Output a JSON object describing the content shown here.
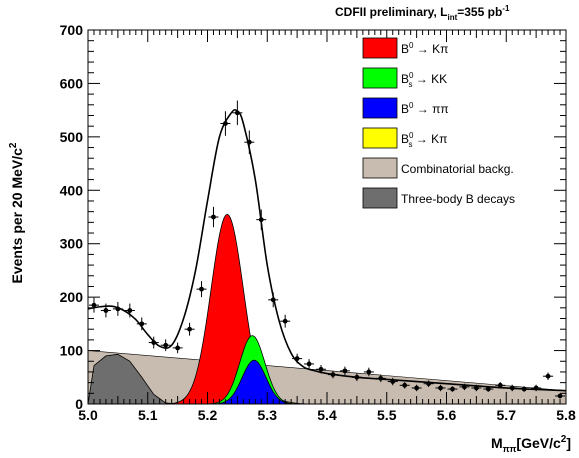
{
  "chart_data": {
    "type": "line",
    "header": {
      "base": "CDFII preliminary, L",
      "sub": "int",
      "eq": "=355 pb",
      "sup": "-1"
    },
    "ylabel": {
      "base": "Events per 20 MeV/c",
      "sup": "2"
    },
    "xlabel": {
      "base": "M",
      "sub": "ππ",
      "unit": "[GeV/c",
      "sup": "2",
      "close": "]"
    },
    "xlim": [
      5.0,
      5.8
    ],
    "ylim": [
      0,
      700
    ],
    "xticks": [
      "5.0",
      "5.1",
      "5.2",
      "5.3",
      "5.4",
      "5.5",
      "5.6",
      "5.7",
      "5.8"
    ],
    "xtick_values": [
      5.0,
      5.1,
      5.2,
      5.3,
      5.4,
      5.5,
      5.6,
      5.7,
      5.8
    ],
    "yticks": [
      "0",
      "100",
      "200",
      "300",
      "400",
      "500",
      "600",
      "700"
    ],
    "ytick_values": [
      0,
      100,
      200,
      300,
      400,
      500,
      600,
      700
    ],
    "grid": false,
    "legend_position": "top-right",
    "legend": [
      {
        "main": "B",
        "sup": "0",
        "sub": "",
        "rest": " → Kπ",
        "color": "#ff0000"
      },
      {
        "main": "B",
        "sup": "0",
        "sub": "s",
        "rest": " → KK",
        "color": "#00ff00"
      },
      {
        "main": "B",
        "sup": "0",
        "sub": "",
        "rest": " → ππ",
        "color": "#0000ff"
      },
      {
        "main": "B",
        "sup": "0",
        "sub": "s",
        "rest": " → Kπ",
        "color": "#ffff00"
      },
      {
        "main": "Combinatorial backg.",
        "sup": "",
        "sub": "",
        "rest": "",
        "color": "#c8bcb0"
      },
      {
        "main": "Three-body B decays",
        "sup": "",
        "sub": "",
        "rest": "",
        "color": "#6e6e6e"
      }
    ],
    "components": {
      "combinatorial": {
        "color": "#c8bcb0",
        "x": [
          5.0,
          5.8
        ],
        "y": [
          100,
          25
        ]
      },
      "three_body": {
        "color": "#6e6e6e",
        "x": [
          5.0,
          5.01,
          5.03,
          5.05,
          5.07,
          5.09,
          5.11,
          5.13,
          5.15
        ],
        "y": [
          0,
          72,
          90,
          93,
          80,
          50,
          18,
          2,
          0
        ]
      },
      "bd_kpi": {
        "color": "#ff0000",
        "mean": 5.233,
        "sigma": 0.027,
        "amp": 355
      },
      "bs_kk": {
        "color": "#00ff00",
        "mean": 5.275,
        "sigma": 0.021,
        "amp": 128
      },
      "bd_pipi": {
        "color": "#0000ff",
        "mean": 5.278,
        "sigma": 0.02,
        "amp": 82
      },
      "bs_kpi": {
        "color": "#ffff00",
        "mean": 5.305,
        "sigma": 0.022,
        "amp": 10
      }
    },
    "fit": {
      "x": [
        5.0,
        5.02,
        5.04,
        5.06,
        5.08,
        5.1,
        5.12,
        5.14,
        5.16,
        5.18,
        5.2,
        5.22,
        5.24,
        5.25,
        5.26,
        5.28,
        5.3,
        5.32,
        5.34,
        5.36,
        5.38,
        5.4,
        5.45,
        5.5,
        5.6,
        5.7,
        5.8
      ],
      "y": [
        178,
        182,
        183,
        175,
        158,
        130,
        108,
        110,
        160,
        250,
        380,
        500,
        545,
        548,
        525,
        420,
        260,
        155,
        95,
        70,
        62,
        57,
        50,
        46,
        38,
        30,
        25
      ]
    },
    "data_points": {
      "x": [
        5.01,
        5.03,
        5.05,
        5.07,
        5.09,
        5.11,
        5.13,
        5.15,
        5.17,
        5.19,
        5.21,
        5.23,
        5.25,
        5.27,
        5.29,
        5.31,
        5.33,
        5.35,
        5.37,
        5.39,
        5.41,
        5.43,
        5.45,
        5.47,
        5.49,
        5.51,
        5.53,
        5.55,
        5.57,
        5.59,
        5.61,
        5.63,
        5.65,
        5.67,
        5.69,
        5.71,
        5.73,
        5.75,
        5.77,
        5.79
      ],
      "y": [
        185,
        175,
        178,
        175,
        150,
        115,
        110,
        105,
        140,
        215,
        350,
        525,
        545,
        490,
        345,
        195,
        155,
        85,
        75,
        65,
        55,
        62,
        50,
        60,
        48,
        42,
        35,
        30,
        38,
        30,
        28,
        32,
        30,
        28,
        35,
        30,
        28,
        30,
        52,
        15
      ],
      "err": [
        14,
        13,
        13,
        13,
        12,
        11,
        11,
        10,
        12,
        15,
        19,
        23,
        23,
        22,
        19,
        14,
        12,
        9,
        9,
        8,
        7,
        8,
        7,
        8,
        7,
        7,
        6,
        6,
        6,
        6,
        5,
        6,
        6,
        5,
        6,
        6,
        5,
        6,
        7,
        4
      ]
    }
  }
}
